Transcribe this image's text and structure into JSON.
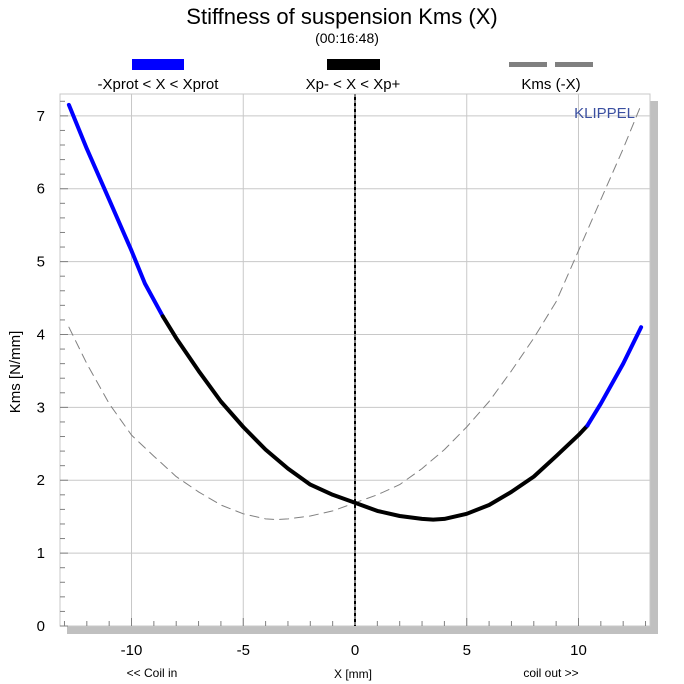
{
  "colors": {
    "prot": "#0000ff",
    "xp": "#000000",
    "mirror": "#808080",
    "grid": "#c8c8c8",
    "shadow": "#c0c0c0",
    "watermark": "#3a4fa0"
  },
  "chart_data": {
    "type": "line",
    "title": "Stiffness of suspension Kms (X)",
    "subtitle": "(00:16:48)",
    "ylabel": "Kms [N/mm]",
    "xlabel": "X [mm]",
    "xlabel_left": "<< Coil in",
    "xlabel_right": "coil out >>",
    "watermark": "KLIPPEL",
    "xlim": [
      -13.2,
      13.2
    ],
    "ylim": [
      0,
      7.3
    ],
    "xticks": [
      {
        "value": -10,
        "label": "-10"
      },
      {
        "value": -5,
        "label": "-5"
      },
      {
        "value": 0,
        "label": "0"
      },
      {
        "value": 5,
        "label": "5"
      },
      {
        "value": 10,
        "label": "10"
      }
    ],
    "yticks": [
      {
        "value": 0,
        "label": "0"
      },
      {
        "value": 1,
        "label": "1"
      },
      {
        "value": 2,
        "label": "2"
      },
      {
        "value": 3,
        "label": "3"
      },
      {
        "value": 4,
        "label": "4"
      },
      {
        "value": 5,
        "label": "5"
      },
      {
        "value": 6,
        "label": "6"
      },
      {
        "value": 7,
        "label": "7"
      }
    ],
    "grid": true,
    "legend": [
      {
        "label": "-Xprot < X < Xprot",
        "style": "solid-blue"
      },
      {
        "label": "Xp- < X < Xp+",
        "style": "solid-black"
      },
      {
        "label": "Kms (-X)",
        "style": "dashed-gray"
      }
    ],
    "vertical_marker_x": 0,
    "series": [
      {
        "name": "-Xprot < X < Xprot",
        "x": [
          -12.8,
          -12,
          -11,
          -10,
          -9.4,
          -8.6
        ],
        "y": [
          7.15,
          6.55,
          5.85,
          5.15,
          4.7,
          4.25
        ]
      },
      {
        "name": "Xp- < X < Xp+",
        "x": [
          -8.6,
          -8,
          -7,
          -6,
          -5,
          -4,
          -3,
          -2,
          -1,
          0,
          1,
          2,
          3,
          3.5,
          4,
          5,
          6,
          7,
          8,
          9,
          10,
          10.4
        ],
        "y": [
          4.25,
          3.95,
          3.5,
          3.08,
          2.73,
          2.42,
          2.16,
          1.94,
          1.8,
          1.69,
          1.58,
          1.51,
          1.47,
          1.46,
          1.47,
          1.54,
          1.66,
          1.84,
          2.05,
          2.33,
          2.62,
          2.75
        ]
      },
      {
        "name": "-Xprot < X < Xprot",
        "x": [
          10.4,
          11,
          12,
          12.8
        ],
        "y": [
          2.75,
          3.05,
          3.6,
          4.1
        ]
      },
      {
        "name": "Kms (-X)",
        "x": [
          -12.8,
          -12,
          -11,
          -10,
          -9,
          -8,
          -7,
          -6,
          -5,
          -4,
          -3.5,
          -3,
          -2,
          -1,
          0,
          1,
          2,
          3,
          4,
          5,
          6,
          7,
          8,
          9,
          10,
          11,
          12,
          12.8
        ],
        "y": [
          4.1,
          3.6,
          3.05,
          2.62,
          2.33,
          2.05,
          1.84,
          1.66,
          1.54,
          1.47,
          1.46,
          1.47,
          1.51,
          1.58,
          1.69,
          1.8,
          1.94,
          2.16,
          2.42,
          2.73,
          3.08,
          3.5,
          3.95,
          4.45,
          5.15,
          5.85,
          6.55,
          7.15
        ]
      }
    ]
  }
}
